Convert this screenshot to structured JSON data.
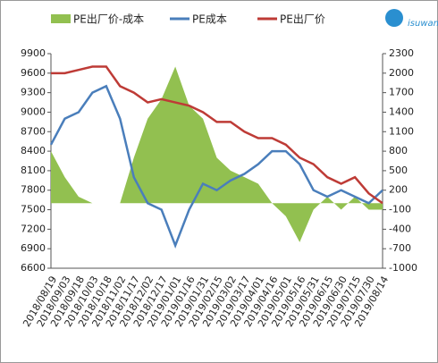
{
  "chart_data": {
    "type": "combo",
    "logo": "isuwang",
    "categories": [
      "2018/08/19",
      "2018/09/03",
      "2018/09/18",
      "2018/10/03",
      "2018/10/18",
      "2018/11/02",
      "2018/11/17",
      "2018/12/02",
      "2018/12/17",
      "2019/01/01",
      "2019/01/16",
      "2019/01/31",
      "2019/02/15",
      "2019/03/02",
      "2019/03/17",
      "2019/04/01",
      "2019/04/16",
      "2019/05/01",
      "2019/05/16",
      "2019/05/31",
      "2019/06/15",
      "2019/06/30",
      "2019/07/15",
      "2019/07/30",
      "2019/08/14"
    ],
    "series": [
      {
        "name": "PE出厂价-成本",
        "type": "area",
        "axis": "y2",
        "color": "#92c050",
        "values": [
          800,
          400,
          100,
          0,
          0,
          0,
          700,
          1300,
          1600,
          2100,
          1500,
          1300,
          700,
          500,
          400,
          300,
          0,
          -200,
          -600,
          -100,
          100,
          -100,
          100,
          -100,
          -100
        ]
      },
      {
        "name": "PE成本",
        "type": "line",
        "color": "#4a7ebb",
        "values": [
          8500,
          8900,
          9000,
          9300,
          9400,
          8900,
          8000,
          7600,
          7500,
          6950,
          7500,
          7900,
          7800,
          7950,
          8050,
          8200,
          8400,
          8400,
          8200,
          7800,
          7700,
          7800,
          7700,
          7600,
          7800
        ]
      },
      {
        "name": "PE出厂价",
        "type": "line",
        "color": "#be3b36",
        "values": [
          9600,
          9600,
          9650,
          9700,
          9700,
          9400,
          9300,
          9150,
          9200,
          9150,
          9100,
          9000,
          8850,
          8850,
          8700,
          8600,
          8600,
          8500,
          8300,
          8200,
          8000,
          7900,
          8000,
          7750,
          7600
        ]
      }
    ],
    "ylim": [
      6600,
      9900
    ],
    "yticks": [
      6600,
      6900,
      7200,
      7500,
      7800,
      8100,
      8400,
      8700,
      9000,
      9300,
      9600,
      9900
    ],
    "y2lim": [
      -1000,
      2300
    ],
    "y2ticks": [
      -1000,
      -700,
      -400,
      -100,
      200,
      500,
      800,
      1100,
      1400,
      1700,
      2000,
      2300
    ]
  }
}
